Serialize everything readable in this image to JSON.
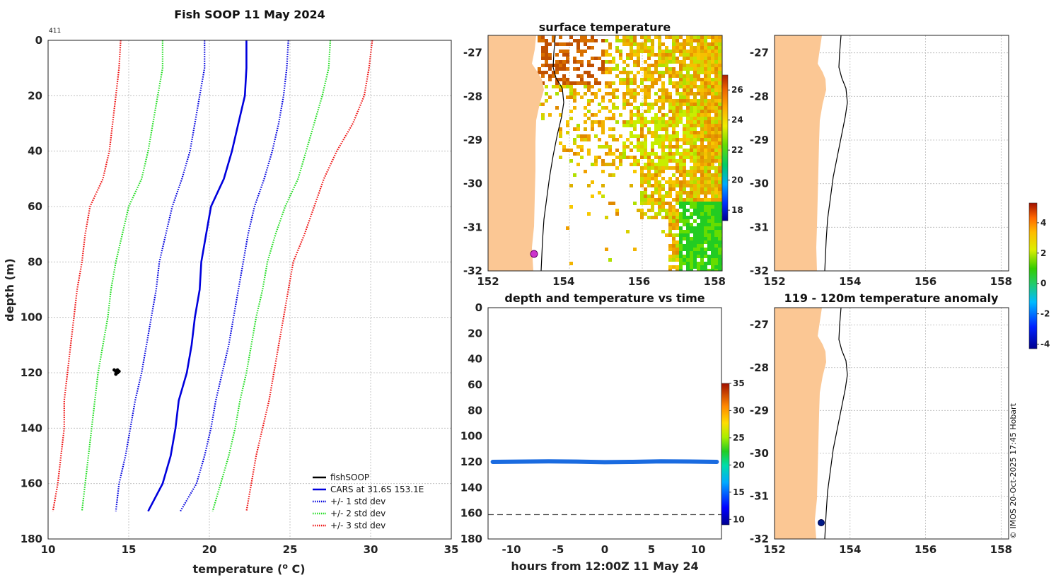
{
  "colors": {
    "land": "#fbc794",
    "fishsoop": "#000000",
    "cars": "#0000dd",
    "std1": "#0000dd",
    "std2": "#22dd22",
    "std3": "#ee1111",
    "track": "#1a6be0",
    "marker": "#cc33cc",
    "anomaly_marker": "#001a88"
  },
  "copyright": "© IMOS 20-Oct-2025 17:45 Hobart",
  "chart_data": [
    {
      "id": "profile",
      "type": "line",
      "title": "Fish SOOP 11 May 2024",
      "annotation": "411",
      "xlabel": "temperature (",
      "xlabel_sup": "o",
      "xlabel_tail": " C)",
      "ylabel": "depth (m)",
      "xlim": [
        10,
        35
      ],
      "ylim": [
        0,
        180
      ],
      "y_reversed": true,
      "xticks": [
        10,
        15,
        20,
        25,
        30,
        35
      ],
      "yticks": [
        0,
        20,
        40,
        60,
        80,
        100,
        120,
        140,
        160,
        180
      ],
      "depth": [
        0,
        10,
        20,
        30,
        40,
        50,
        60,
        70,
        80,
        90,
        100,
        110,
        120,
        130,
        140,
        150,
        160,
        170
      ],
      "legend": [
        "fishSOOP",
        "CARS at 31.6S 153.1E",
        "+/- 1 std dev",
        "+/- 2 std dev",
        "+/- 3 std dev"
      ],
      "series": [
        {
          "name": "CARS at 31.6S 153.1E",
          "style": "solid",
          "color": "#0000dd",
          "values": [
            22.3,
            22.3,
            22.2,
            21.8,
            21.4,
            20.9,
            20.1,
            19.8,
            19.5,
            19.4,
            19.1,
            18.9,
            18.6,
            18.1,
            17.9,
            17.6,
            17.1,
            16.2
          ]
        },
        {
          "name": "+1 std dev",
          "style": "dotted",
          "color": "#0000dd",
          "values": [
            24.9,
            24.8,
            24.6,
            24.3,
            23.9,
            23.4,
            22.8,
            22.4,
            22.1,
            21.8,
            21.5,
            21.2,
            20.8,
            20.4,
            20.1,
            19.7,
            19.2,
            18.2
          ]
        },
        {
          "name": "-1 std dev",
          "style": "dotted",
          "color": "#0000dd",
          "values": [
            19.7,
            19.7,
            19.4,
            19.1,
            18.8,
            18.3,
            17.7,
            17.3,
            16.9,
            16.7,
            16.4,
            16.1,
            15.8,
            15.4,
            15.1,
            14.8,
            14.4,
            14.2
          ]
        },
        {
          "name": "+2 std dev",
          "style": "dotted",
          "color": "#22dd22",
          "values": [
            27.5,
            27.4,
            27.0,
            26.5,
            26.0,
            25.5,
            24.7,
            24.1,
            23.6,
            23.3,
            22.9,
            22.6,
            22.3,
            21.9,
            21.6,
            21.2,
            20.7,
            20.2
          ]
        },
        {
          "name": "-2 std dev",
          "style": "dotted",
          "color": "#22dd22",
          "values": [
            17.1,
            17.1,
            16.8,
            16.5,
            16.2,
            15.8,
            15.0,
            14.6,
            14.2,
            13.9,
            13.7,
            13.4,
            13.1,
            12.9,
            12.7,
            12.5,
            12.3,
            12.1
          ]
        },
        {
          "name": "+3 std dev",
          "style": "dotted",
          "color": "#ee1111",
          "values": [
            30.1,
            29.9,
            29.6,
            28.9,
            27.9,
            27.1,
            26.5,
            25.9,
            25.2,
            24.9,
            24.6,
            24.3,
            24.0,
            23.7,
            23.3,
            22.9,
            22.6,
            22.3
          ]
        },
        {
          "name": "-3 std dev",
          "style": "dotted",
          "color": "#ee1111",
          "values": [
            14.5,
            14.4,
            14.2,
            14.0,
            13.8,
            13.4,
            12.6,
            12.3,
            12.1,
            11.8,
            11.6,
            11.4,
            11.2,
            11.0,
            11.0,
            10.8,
            10.6,
            10.3
          ]
        }
      ],
      "fishsoop_points": {
        "temperature": [
          14.1,
          14.2,
          14.3,
          14.4,
          14.2,
          14.3
        ],
        "depth": [
          119,
          119.5,
          120,
          119.5,
          120.5,
          119
        ]
      }
    },
    {
      "id": "sst_map",
      "type": "heatmap",
      "title": "surface temperature",
      "xlim": [
        152,
        158.2
      ],
      "ylim": [
        -32,
        -26.6
      ],
      "xticks": [
        152,
        154,
        156,
        158
      ],
      "yticks": [
        -32,
        -31,
        -30,
        -29,
        -28,
        -27
      ],
      "colorbar": {
        "range": [
          17.3,
          27
        ],
        "ticks": [
          18,
          20,
          22,
          24,
          26
        ]
      },
      "vessel_position": {
        "lon": 153.1,
        "lat": -31.65
      }
    },
    {
      "id": "depth_time",
      "type": "scatter",
      "title": "depth and temperature vs time",
      "xlabel": "hours from 12:00Z 11 May 24",
      "xlim": [
        -12.5,
        12.5
      ],
      "ylim": [
        0,
        180
      ],
      "y_reversed": true,
      "xticks": [
        -10,
        -5,
        0,
        5,
        10
      ],
      "yticks": [
        0,
        20,
        40,
        60,
        80,
        100,
        120,
        140,
        160,
        180
      ],
      "colorbar": {
        "range": [
          9,
          35
        ],
        "ticks": [
          10,
          15,
          20,
          25,
          30,
          35
        ]
      },
      "bottom_depth": 161,
      "track": {
        "hours": [
          -12,
          -9,
          -6,
          -3,
          0,
          3,
          6,
          9,
          12
        ],
        "depth": [
          120,
          119.8,
          119.6,
          119.8,
          120.2,
          120.0,
          119.6,
          119.7,
          120
        ]
      }
    },
    {
      "id": "empty_map",
      "type": "heatmap",
      "title": "",
      "xlim": [
        152,
        158.2
      ],
      "ylim": [
        -32,
        -26.6
      ],
      "xticks": [
        152,
        154,
        156,
        158
      ],
      "yticks": [
        -32,
        -31,
        -30,
        -29,
        -28,
        -27
      ]
    },
    {
      "id": "anomaly_map",
      "type": "heatmap",
      "title": "119 - 120m temperature anomaly",
      "xlim": [
        152,
        158.2
      ],
      "ylim": [
        -32,
        -26.6
      ],
      "xticks": [
        152,
        154,
        156,
        158
      ],
      "yticks": [
        -32,
        -31,
        -30,
        -29,
        -28,
        -27
      ],
      "colorbar": {
        "range": [
          -4.3,
          5.3
        ],
        "ticks": [
          -4,
          -2,
          0,
          2,
          4
        ]
      },
      "vessel_position": {
        "lon": 153.1,
        "lat": -31.65
      }
    }
  ]
}
